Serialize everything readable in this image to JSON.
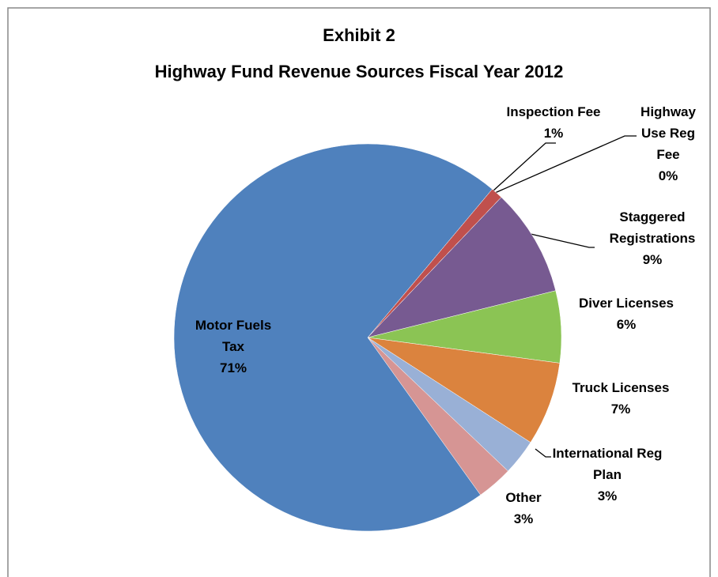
{
  "chart_data": {
    "type": "pie",
    "title": "Exhibit 2",
    "subtitle": "Highway Fund Revenue Sources Fiscal Year 2012",
    "categories": [
      "Inspection Fee",
      "Highway Use Reg Fee",
      "Staggered Registrations",
      "Diver Licenses",
      "Truck Licenses",
      "International Reg Plan",
      "Other",
      "Motor Fuels Tax"
    ],
    "values": [
      1,
      0,
      9,
      6,
      7,
      3,
      3,
      71
    ],
    "value_labels": [
      "1%",
      "0%",
      "9%",
      "6%",
      "7%",
      "3%",
      "3%",
      "71%"
    ],
    "colors": [
      "#c0504d",
      "#9bbb59",
      "#775a91",
      "#8bc454",
      "#db833e",
      "#99b0d6",
      "#d69594",
      "#4f81bd"
    ]
  }
}
